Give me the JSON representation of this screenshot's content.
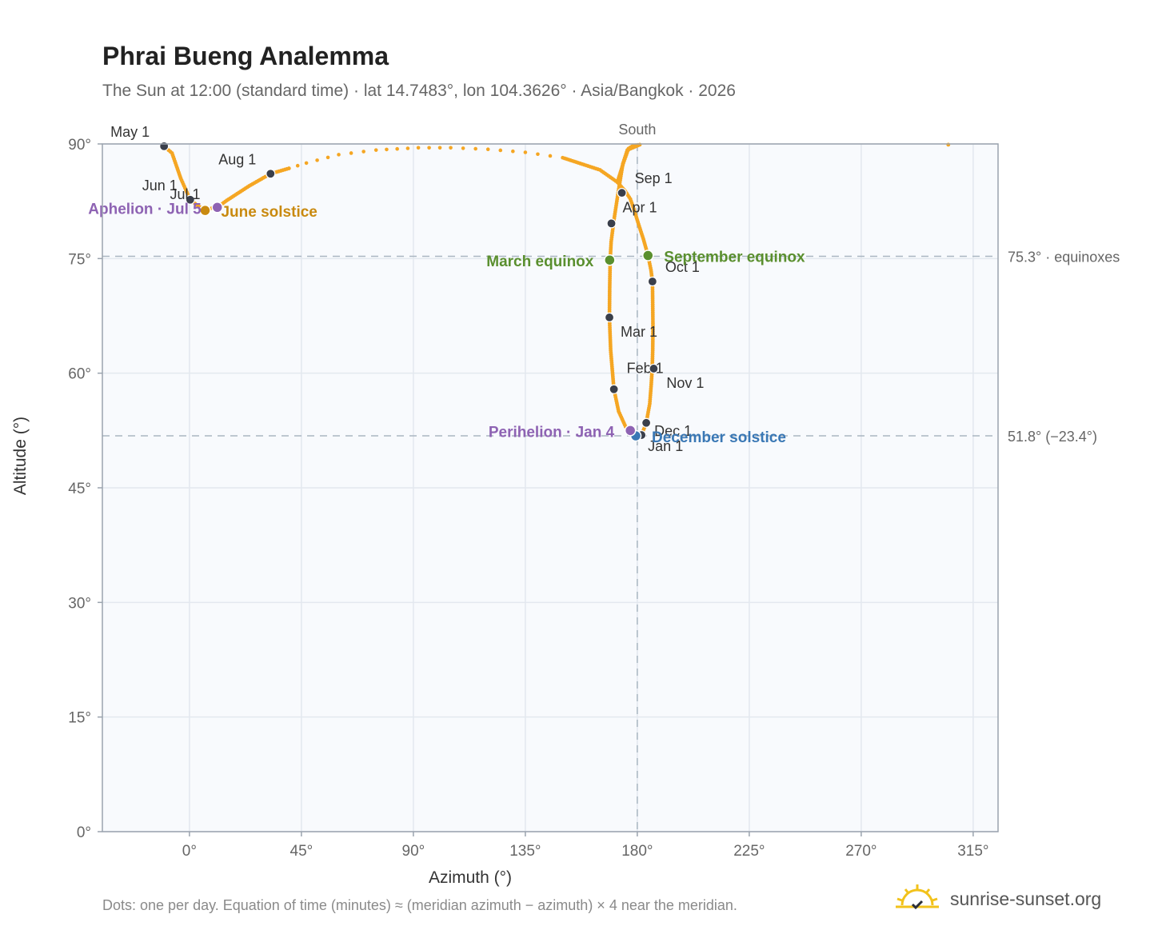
{
  "title": "Phrai Bueng Analemma",
  "subtitle": "The Sun at 12:00 (standard time) · lat 14.7483°, lon 104.3626° · Asia/Bangkok · 2026",
  "footnote": "Dots: one per day. Equation of time (minutes) ≈ (meridian azimuth − azimuth) × 4 near the meridian.",
  "brand": {
    "text": "sunrise-sunset.org",
    "icon": "sun-icon"
  },
  "colors": {
    "curve": "#f5a623",
    "month_dot": "#3a3f4b",
    "equinox": "#5a8f2e",
    "june_solstice": "#c98a10",
    "december_solstice": "#3a78b5",
    "apsis": "#8e63b3",
    "plot_bg": "#f8fafd",
    "grid": "#e3e8ef",
    "ref_line": "#aab6c2"
  },
  "chart_data": {
    "type": "scatter",
    "title": "Phrai Bueng Analemma",
    "xlabel": "Azimuth (°)",
    "ylabel": "Altitude (°)",
    "xlim": [
      -35,
      325
    ],
    "ylim": [
      0,
      90
    ],
    "x_ticks": [
      {
        "value": 0,
        "label": "0°"
      },
      {
        "value": 45,
        "label": "45°"
      },
      {
        "value": 90,
        "label": "90°"
      },
      {
        "value": 135,
        "label": "135°"
      },
      {
        "value": 180,
        "label": "180°"
      },
      {
        "value": 225,
        "label": "225°"
      },
      {
        "value": 270,
        "label": "270°"
      },
      {
        "value": 315,
        "label": "315°"
      }
    ],
    "y_ticks": [
      {
        "value": 0,
        "label": "0°"
      },
      {
        "value": 15,
        "label": "15°"
      },
      {
        "value": 30,
        "label": "30°"
      },
      {
        "value": 45,
        "label": "45°"
      },
      {
        "value": 60,
        "label": "60°"
      },
      {
        "value": 75,
        "label": "75°"
      },
      {
        "value": 90,
        "label": "90°"
      }
    ],
    "grid": true,
    "meridian": {
      "azimuth": 180,
      "label": "South"
    },
    "reference_lines": [
      {
        "altitude": 75.3,
        "label": "75.3° · equinoxes"
      },
      {
        "altitude": 51.8,
        "label": "51.8° (−23.4°)"
      }
    ],
    "analemma_path": [
      [
        181.7,
        51.9
      ],
      [
        183.6,
        53.5
      ],
      [
        185.0,
        56.0
      ],
      [
        185.6,
        58.5
      ],
      [
        186.0,
        60.6
      ],
      [
        186.2,
        63
      ],
      [
        186.3,
        66
      ],
      [
        186.2,
        69
      ],
      [
        186.1,
        72
      ],
      [
        185.5,
        73.5
      ],
      [
        184.3,
        75.4
      ],
      [
        182.5,
        77.5
      ],
      [
        180.5,
        79.5
      ],
      [
        178.6,
        81.5
      ],
      [
        177.2,
        82.8
      ],
      [
        175.2,
        83.8
      ],
      [
        172.0,
        85.0
      ],
      [
        165.0,
        86.6
      ],
      [
        150.0,
        88.2
      ],
      [
        135.0,
        88.9
      ],
      [
        120.0,
        89.3
      ],
      [
        105.0,
        89.5
      ],
      [
        92.0,
        89.5
      ],
      [
        75.0,
        89.2
      ],
      [
        60.0,
        88.6
      ],
      [
        47.0,
        87.5
      ],
      [
        40.0,
        86.8
      ],
      [
        32.6,
        86.1
      ],
      [
        24.0,
        84.5
      ],
      [
        15.0,
        82.6
      ],
      [
        11.2,
        81.7
      ],
      [
        9.0,
        81.6
      ],
      [
        6.3,
        81.3
      ],
      [
        3.0,
        82.0
      ],
      [
        0.3,
        82.7
      ],
      [
        -3.5,
        85.5
      ],
      [
        -7.0,
        88.8
      ],
      [
        -10.2,
        89.7
      ]
    ],
    "analemma_path_2": [
      [
        -10.2,
        89.7
      ],
      [
        -8.5,
        89.9
      ]
    ],
    "analemma_path_3": [
      [
        172.0,
        85.0
      ],
      [
        174.4,
        87.5
      ],
      [
        176.5,
        89.4
      ],
      [
        178.5,
        89.8
      ],
      [
        181.0,
        89.9
      ]
    ],
    "analemma_path_4": [
      [
        181.0,
        89.9
      ],
      [
        176.0,
        89.2
      ],
      [
        174.2,
        87.4
      ],
      [
        172.3,
        83.6
      ],
      [
        170.6,
        80.0
      ],
      [
        169.5,
        77.2
      ],
      [
        169.1,
        74.8
      ],
      [
        168.9,
        71.0
      ],
      [
        168.8,
        67.3
      ],
      [
        169.3,
        63.0
      ],
      [
        170.6,
        57.9
      ],
      [
        172.5,
        55.0
      ],
      [
        175.3,
        53.0
      ],
      [
        177.2,
        52.5
      ],
      [
        179.4,
        52.1
      ],
      [
        181.7,
        51.9
      ]
    ],
    "sparse_dots_x_range": [
      40,
      165
    ],
    "month_markers": [
      {
        "label": "Jan 1",
        "az": 181.7,
        "alt": 51.9
      },
      {
        "label": "Feb 1",
        "az": 170.6,
        "alt": 57.9
      },
      {
        "label": "Mar 1",
        "az": 168.8,
        "alt": 67.3
      },
      {
        "label": "Apr 1",
        "az": 169.6,
        "alt": 79.6
      },
      {
        "label": "May 1",
        "az": -10.2,
        "alt": 89.7
      },
      {
        "label": "Jun 1",
        "az": 0.3,
        "alt": 82.7
      },
      {
        "label": "Jul 1",
        "az": 6.3,
        "alt": 81.3
      },
      {
        "label": "Aug 1",
        "az": 32.6,
        "alt": 86.1
      },
      {
        "label": "Sep 1",
        "az": 173.8,
        "alt": 83.6
      },
      {
        "label": "Oct 1",
        "az": 186.1,
        "alt": 72.0
      },
      {
        "label": "Nov 1",
        "az": 186.6,
        "alt": 60.6
      },
      {
        "label": "Dec 1",
        "az": 183.6,
        "alt": 53.5
      }
    ],
    "events": [
      {
        "label": "March equinox",
        "az": 168.9,
        "alt": 74.8,
        "kind": "equinox"
      },
      {
        "label": "September equinox",
        "az": 184.3,
        "alt": 75.4,
        "kind": "equinox"
      },
      {
        "label": "June solstice",
        "az": 6.3,
        "alt": 81.3,
        "kind": "june_solstice"
      },
      {
        "label": "December solstice",
        "az": 179.4,
        "alt": 51.8,
        "kind": "december_solstice"
      },
      {
        "label": "Perihelion · Jan 4",
        "az": 177.2,
        "alt": 52.5,
        "kind": "apsis"
      },
      {
        "label": "Aphelion · Jul 5",
        "az": 11.2,
        "alt": 81.7,
        "kind": "apsis"
      }
    ],
    "outlier_point": {
      "az": 305.0,
      "alt": 89.9
    }
  }
}
